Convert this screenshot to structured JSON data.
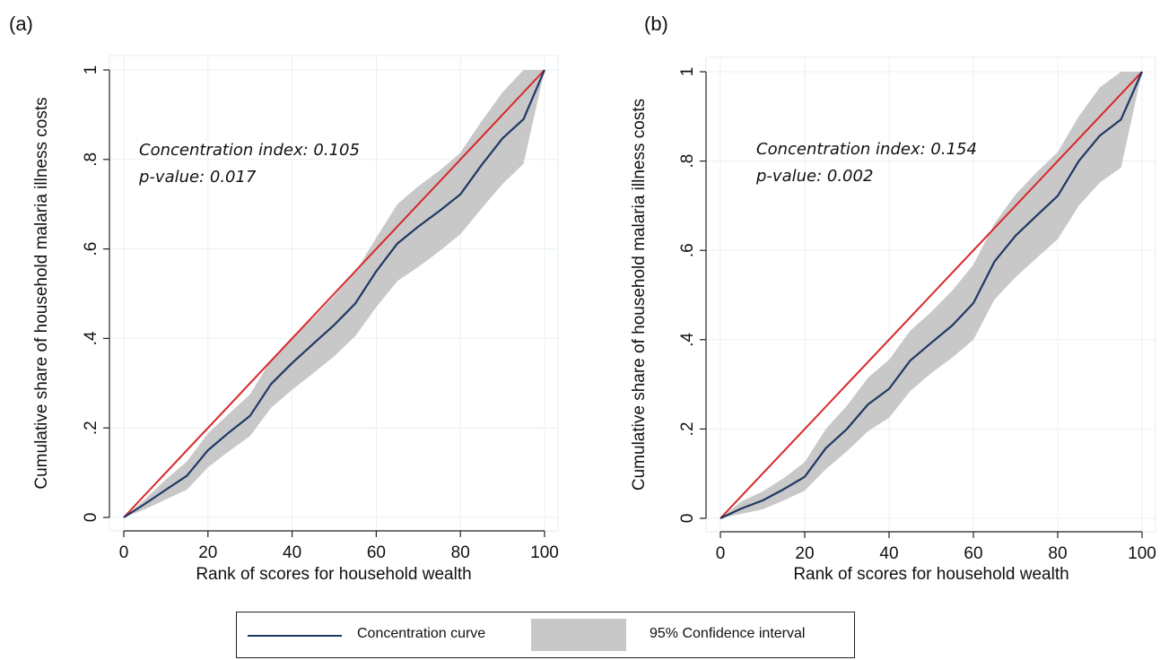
{
  "panels": [
    {
      "letter": "(a)"
    },
    {
      "letter": "(b)"
    }
  ],
  "legend": {
    "curve_label": "Concentration curve",
    "ci_label": "95% Confidence interval",
    "colors": {
      "curve": "#1f3864",
      "ci": "#c8c8c8",
      "equality": "#d62728"
    }
  },
  "chart_data": [
    {
      "type": "line",
      "panel": "(a)",
      "xlabel": "Rank of scores for household wealth",
      "ylabel": "Cumulative share of household malaria illness costs",
      "xlim": [
        0,
        100
      ],
      "ylim": [
        0,
        1
      ],
      "x_ticks": [
        "0",
        "20",
        "40",
        "60",
        "80",
        "100"
      ],
      "y_ticks": [
        "0",
        ".2",
        ".4",
        ".6",
        ".8",
        "1"
      ],
      "grid": true,
      "legend_position": "bottom",
      "annotations": [
        "Concentration index: 0.105",
        "p-value: 0.017"
      ],
      "x": [
        0,
        5,
        10,
        15,
        20,
        25,
        30,
        35,
        40,
        45,
        50,
        55,
        60,
        65,
        70,
        75,
        80,
        85,
        90,
        95,
        100
      ],
      "series": [
        {
          "name": "Concentration curve",
          "style": "line",
          "values": [
            0,
            0.03,
            0.062,
            0.093,
            0.15,
            0.19,
            0.227,
            0.298,
            0.345,
            0.388,
            0.43,
            0.478,
            0.55,
            0.612,
            0.65,
            0.685,
            0.722,
            0.787,
            0.847,
            0.89,
            1
          ]
        },
        {
          "name": "95% Confidence interval",
          "style": "band",
          "lower": [
            0,
            0.018,
            0.04,
            0.062,
            0.112,
            0.148,
            0.182,
            0.245,
            0.285,
            0.322,
            0.36,
            0.405,
            0.47,
            0.528,
            0.56,
            0.595,
            0.633,
            0.69,
            0.745,
            0.79,
            1
          ],
          "upper": [
            0,
            0.04,
            0.085,
            0.125,
            0.188,
            0.232,
            0.275,
            0.352,
            0.402,
            0.445,
            0.495,
            0.548,
            0.625,
            0.7,
            0.74,
            0.775,
            0.815,
            0.885,
            0.95,
            1.0,
            1
          ]
        },
        {
          "style": "equality_line",
          "values": [
            0,
            0.05,
            0.1,
            0.15,
            0.2,
            0.25,
            0.3,
            0.35,
            0.4,
            0.45,
            0.5,
            0.55,
            0.6,
            0.65,
            0.7,
            0.75,
            0.8,
            0.85,
            0.9,
            0.95,
            1
          ]
        }
      ]
    },
    {
      "type": "line",
      "panel": "(b)",
      "xlabel": "Rank of scores for household wealth",
      "ylabel": "Cumulative share of household malaria illness costs",
      "xlim": [
        0,
        100
      ],
      "ylim": [
        0,
        1
      ],
      "x_ticks": [
        "0",
        "20",
        "40",
        "60",
        "80",
        "100"
      ],
      "y_ticks": [
        "0",
        ".2",
        ".4",
        ".6",
        ".8",
        "1"
      ],
      "grid": true,
      "legend_position": "bottom",
      "annotations": [
        "Concentration index: 0.154",
        "p-value: 0.002"
      ],
      "x": [
        0,
        5,
        10,
        15,
        20,
        25,
        30,
        35,
        40,
        45,
        50,
        55,
        60,
        65,
        70,
        75,
        80,
        85,
        90,
        95,
        100
      ],
      "series": [
        {
          "name": "Concentration curve",
          "style": "line",
          "values": [
            0,
            0.022,
            0.04,
            0.065,
            0.093,
            0.157,
            0.2,
            0.255,
            0.29,
            0.353,
            0.393,
            0.432,
            0.482,
            0.575,
            0.633,
            0.678,
            0.722,
            0.8,
            0.857,
            0.893,
            1
          ]
        },
        {
          "name": "95% Confidence interval",
          "style": "band",
          "lower": [
            0,
            0.01,
            0.02,
            0.04,
            0.062,
            0.11,
            0.15,
            0.195,
            0.225,
            0.285,
            0.325,
            0.36,
            0.4,
            0.49,
            0.54,
            0.583,
            0.625,
            0.7,
            0.752,
            0.785,
            1
          ],
          "upper": [
            0,
            0.038,
            0.06,
            0.09,
            0.126,
            0.2,
            0.252,
            0.315,
            0.355,
            0.42,
            0.462,
            0.51,
            0.568,
            0.66,
            0.725,
            0.775,
            0.82,
            0.9,
            0.965,
            1.0,
            1
          ]
        },
        {
          "style": "equality_line",
          "values": [
            0,
            0.05,
            0.1,
            0.15,
            0.2,
            0.25,
            0.3,
            0.35,
            0.4,
            0.45,
            0.5,
            0.55,
            0.6,
            0.65,
            0.7,
            0.75,
            0.8,
            0.85,
            0.9,
            0.95,
            1
          ]
        }
      ]
    }
  ]
}
